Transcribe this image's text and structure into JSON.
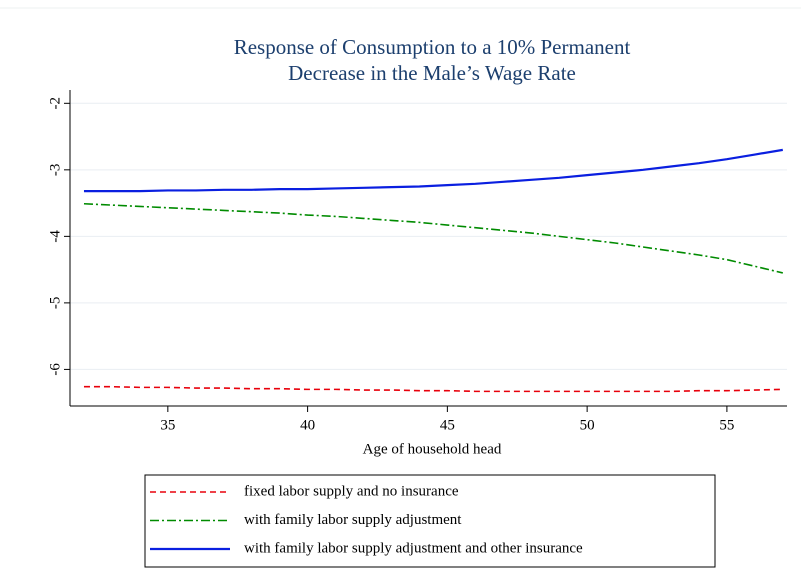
{
  "chart_data": {
    "type": "line",
    "title": [
      "Response of Consumption to a 10% Permanent",
      "Decrease in the Male’s Wage Rate"
    ],
    "x_label": "Age of household head",
    "x": [
      32,
      33,
      34,
      35,
      36,
      37,
      38,
      39,
      40,
      41,
      42,
      43,
      44,
      45,
      46,
      47,
      48,
      49,
      50,
      51,
      52,
      53,
      54,
      55,
      56,
      57
    ],
    "series": [
      {
        "name": "fixed labor supply and no insurance",
        "color": "#e8000b",
        "dash": "6,4",
        "values": [
          -6.26,
          -6.26,
          -6.27,
          -6.27,
          -6.28,
          -6.28,
          -6.29,
          -6.29,
          -6.3,
          -6.3,
          -6.31,
          -6.31,
          -6.32,
          -6.32,
          -6.33,
          -6.33,
          -6.33,
          -6.33,
          -6.33,
          -6.33,
          -6.33,
          -6.33,
          -6.32,
          -6.32,
          -6.31,
          -6.3
        ]
      },
      {
        "name": "with family labor supply adjustment",
        "color": "#008b00",
        "dash": "9,3,2,3",
        "values": [
          -3.51,
          -3.53,
          -3.55,
          -3.57,
          -3.59,
          -3.61,
          -3.63,
          -3.65,
          -3.68,
          -3.7,
          -3.73,
          -3.76,
          -3.79,
          -3.83,
          -3.87,
          -3.91,
          -3.95,
          -4.0,
          -4.05,
          -4.1,
          -4.16,
          -4.22,
          -4.28,
          -4.35,
          -4.45,
          -4.55
        ]
      },
      {
        "name": "with family labor supply adjustment and other insurance",
        "color": "#0a1fe0",
        "dash": "none",
        "values": [
          -3.32,
          -3.32,
          -3.32,
          -3.31,
          -3.31,
          -3.3,
          -3.3,
          -3.29,
          -3.29,
          -3.28,
          -3.27,
          -3.26,
          -3.25,
          -3.23,
          -3.21,
          -3.18,
          -3.15,
          -3.12,
          -3.08,
          -3.04,
          -3.0,
          -2.95,
          -2.9,
          -2.84,
          -2.77,
          -2.7
        ]
      }
    ],
    "xlim": [
      31.5,
      57.15
    ],
    "xticks": [
      35,
      40,
      45,
      50,
      55
    ],
    "ylim": [
      -6.55,
      -1.8
    ],
    "yticks": [
      -2,
      -3,
      -4,
      -5,
      -6
    ],
    "grid": true
  }
}
